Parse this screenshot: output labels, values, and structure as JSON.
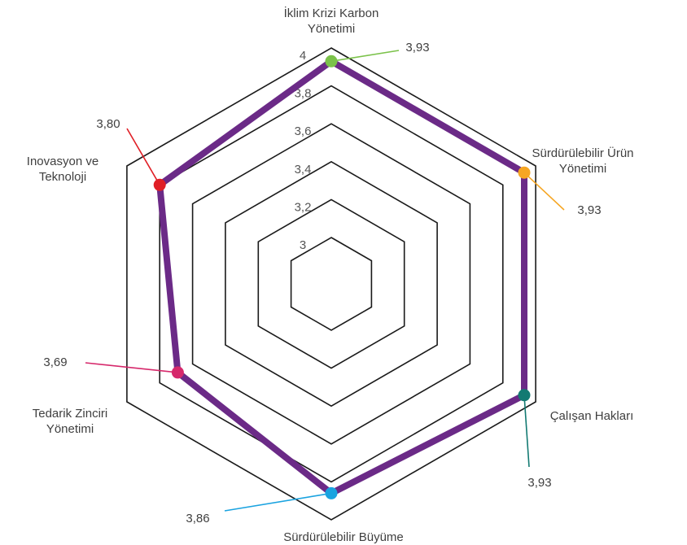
{
  "chart_data": {
    "type": "radar",
    "title": "",
    "range": [
      3,
      4
    ],
    "ticks": [
      "3",
      "3,2",
      "3,4",
      "3,6",
      "3,8",
      "4"
    ],
    "tick_values": [
      3,
      3.2,
      3.4,
      3.6,
      3.8,
      4
    ],
    "grid": true,
    "series_color": "#6b2a87",
    "axes": [
      {
        "label_lines": [
          "İklim Krizi Karbon",
          "Yönetimi"
        ],
        "value": 3.93,
        "value_label": "3,93",
        "color": "#7bc24a"
      },
      {
        "label_lines": [
          "Sürdürülebilir Ürün",
          "Yönetimi"
        ],
        "value": 3.93,
        "value_label": "3,93",
        "color": "#f6a623"
      },
      {
        "label_lines": [
          "Çalışan Hakları"
        ],
        "value": 3.93,
        "value_label": "3,93",
        "color": "#137a72"
      },
      {
        "label_lines": [
          "Sürdürülebilir Büyüme"
        ],
        "value": 3.86,
        "value_label": "3,86",
        "color": "#1aa3e0"
      },
      {
        "label_lines": [
          "Tedarik Zinciri",
          "Yönetimi"
        ],
        "value": 3.69,
        "value_label": "3,69",
        "color": "#d6286b"
      },
      {
        "label_lines": [
          "Inovasyon ve",
          "Teknoloji"
        ],
        "value": 3.8,
        "value_label": "3,80",
        "color": "#e01f26"
      }
    ]
  }
}
